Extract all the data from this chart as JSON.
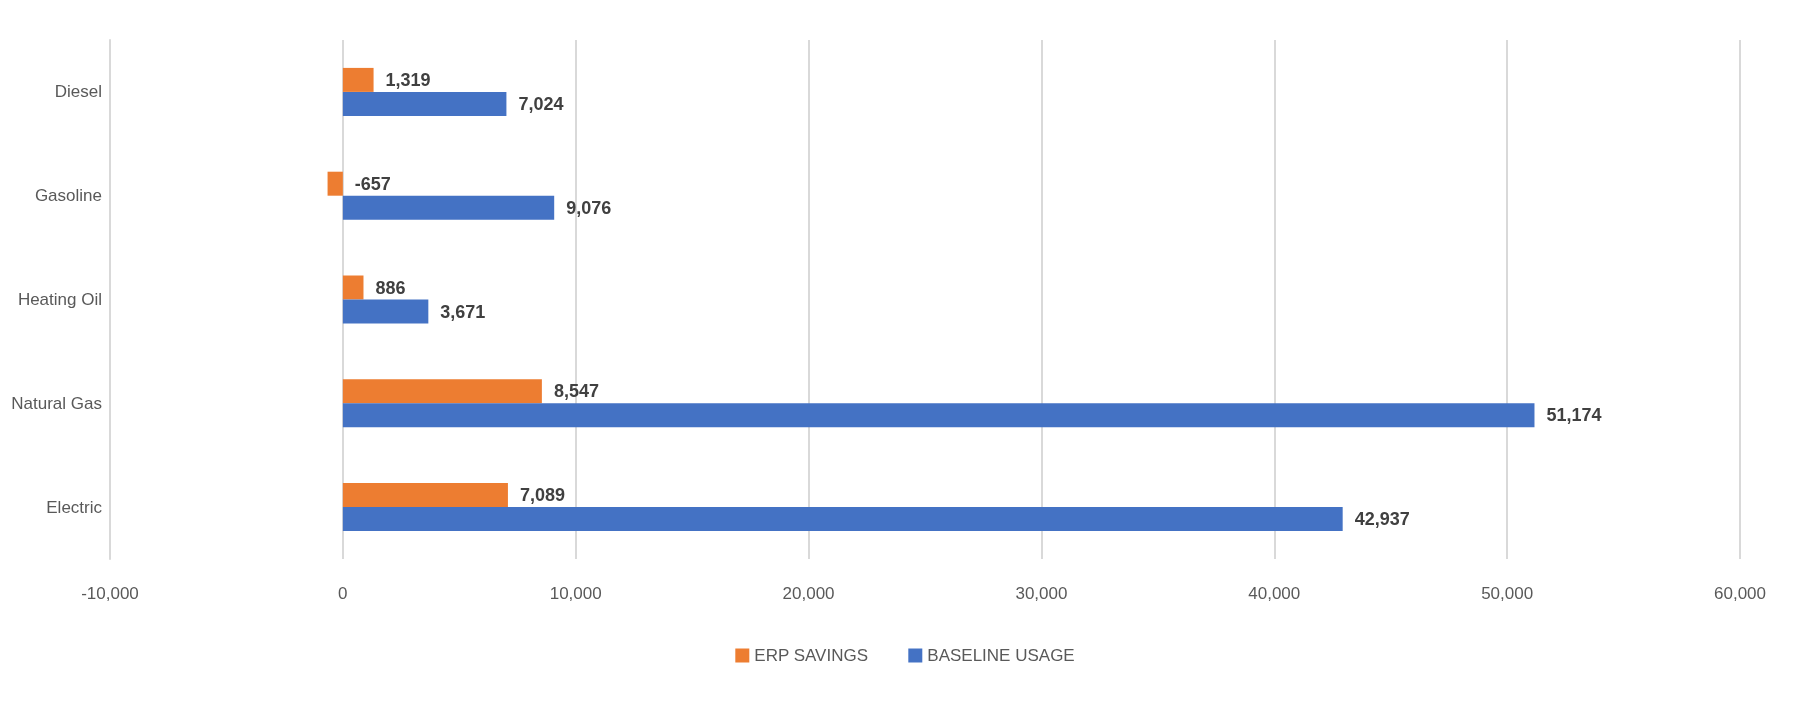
{
  "chart_data": {
    "type": "bar",
    "orientation": "horizontal",
    "categories": [
      "Diesel",
      "Gasoline",
      "Heating Oil",
      "Natural Gas",
      "Electric"
    ],
    "series": [
      {
        "name": "ERP SAVINGS",
        "color": "#ed7d31",
        "values": [
          1319,
          -657,
          886,
          8547,
          7089
        ],
        "value_labels": [
          "1,319",
          "-657",
          "886",
          "8,547",
          "7,089"
        ]
      },
      {
        "name": "BASELINE USAGE",
        "color": "#4472c4",
        "values": [
          7024,
          9076,
          3671,
          51174,
          42937
        ],
        "value_labels": [
          "7,024",
          "9,076",
          "3,671",
          "51,174",
          "42,937"
        ]
      }
    ],
    "xlim": [
      -10000,
      60000
    ],
    "xticks": [
      {
        "value": -10000,
        "label": "-10,000"
      },
      0,
      {
        "value": 10000,
        "label": "10,000"
      },
      {
        "value": 20000,
        "label": "20,000"
      },
      {
        "value": 30000,
        "label": "30,000"
      },
      {
        "value": 40000,
        "label": "40,000"
      },
      {
        "value": 50000,
        "label": "50,000"
      },
      {
        "value": 60000,
        "label": "60,000"
      }
    ],
    "grid": "x",
    "legend": "bottom"
  }
}
